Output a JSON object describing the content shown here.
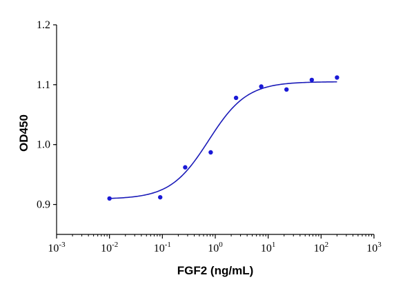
{
  "chart_data": {
    "type": "scatter",
    "title": "",
    "xlabel": "FGF2 (ng/mL)",
    "ylabel": "OD450",
    "xscale": "log",
    "xlim": [
      0.001,
      1000
    ],
    "ylim": [
      0.85,
      1.2
    ],
    "x_ticks": [
      {
        "base": "10",
        "exp": "-3",
        "value": 0.001
      },
      {
        "base": "10",
        "exp": "-2",
        "value": 0.01
      },
      {
        "base": "10",
        "exp": "-1",
        "value": 0.1
      },
      {
        "base": "10",
        "exp": "0",
        "value": 1
      },
      {
        "base": "10",
        "exp": "1",
        "value": 10
      },
      {
        "base": "10",
        "exp": "2",
        "value": 100
      },
      {
        "base": "10",
        "exp": "3",
        "value": 1000
      }
    ],
    "y_ticks": [
      {
        "label": "0.9",
        "value": 0.9
      },
      {
        "label": "1.0",
        "value": 1.0
      },
      {
        "label": "1.1",
        "value": 1.1
      },
      {
        "label": "1.2",
        "value": 1.2
      }
    ],
    "points": [
      {
        "x": 0.01,
        "y": 0.91
      },
      {
        "x": 0.091,
        "y": 0.912
      },
      {
        "x": 0.27,
        "y": 0.962
      },
      {
        "x": 0.82,
        "y": 0.987
      },
      {
        "x": 2.47,
        "y": 1.078
      },
      {
        "x": 7.4,
        "y": 1.097
      },
      {
        "x": 22.2,
        "y": 1.092
      },
      {
        "x": 66.7,
        "y": 1.108
      },
      {
        "x": 200,
        "y": 1.112
      }
    ],
    "fit_curve": {
      "model": "4PL",
      "bottom": 0.909,
      "top": 1.105,
      "ec50": 0.75,
      "hill": 1.2,
      "x_range": [
        0.01,
        200
      ]
    },
    "grid": false,
    "legend": "none",
    "colors": {
      "points": "#1a1ad6",
      "curve": "#1a1ab8",
      "axis": "#000000"
    }
  }
}
